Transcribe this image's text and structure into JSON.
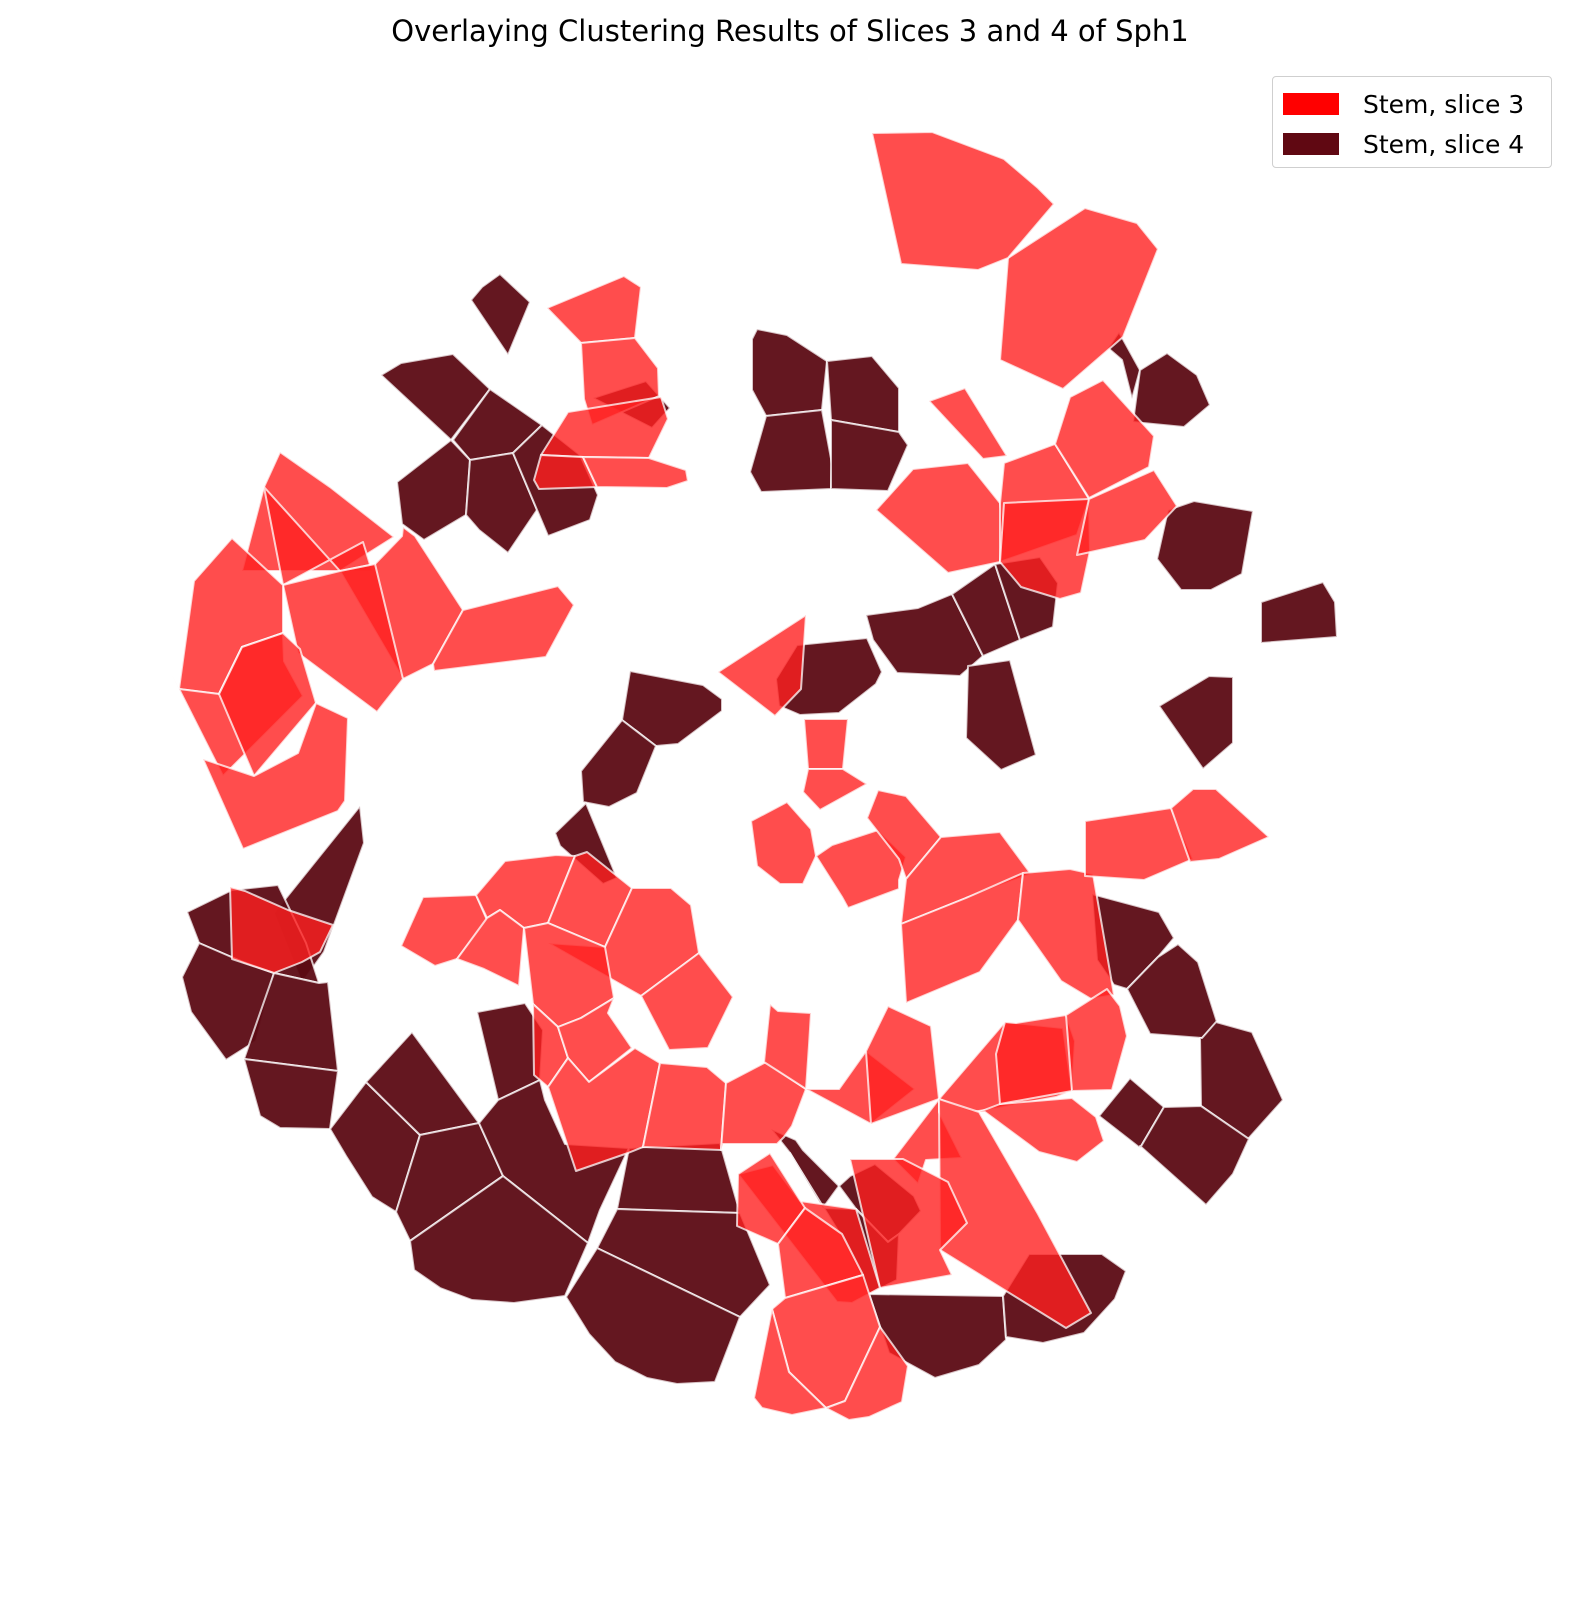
{
  "chart_data": {
    "type": "voronoi-overlay",
    "title": "Overlaying Clustering Results of Slices 3 and 4 of Sph1",
    "legend_position": "top-right",
    "axes": "off",
    "colors": {
      "slice3_fill": "#ff2020",
      "slice4_fill": "#5c0b14",
      "cell_edge": "#ffffff"
    },
    "series": [
      {
        "name": "Stem, slice 3",
        "legend_color": "#ff0000",
        "fill_opacity": 0.8
      },
      {
        "name": "Stem, slice 4",
        "legend_color": "#600812",
        "fill_opacity": 0.95
      }
    ]
  }
}
